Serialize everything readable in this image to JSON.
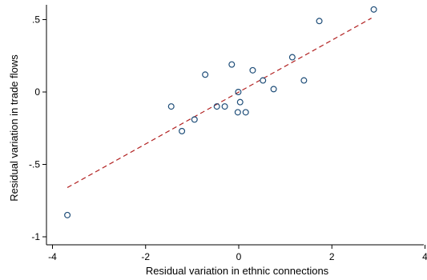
{
  "chart_data": {
    "type": "scatter",
    "title": "",
    "xlabel": "Residual variation in ethnic connections",
    "ylabel": "Residual variation in trade flows",
    "xlim": [
      -4.1,
      4.0
    ],
    "ylim": [
      -1.05,
      0.61
    ],
    "x_ticks": [
      -4,
      -2,
      0,
      2,
      4
    ],
    "x_tick_labels": [
      "-4",
      "-2",
      "0",
      "2",
      "4"
    ],
    "y_ticks": [
      -1,
      -0.5,
      0,
      0.5
    ],
    "y_tick_labels": [
      "-1",
      "-.5",
      "0",
      ".5"
    ],
    "grid": false,
    "legend": "none",
    "colors": {
      "points": "#1f4e79",
      "fit_line": "#b22222"
    },
    "series": [
      {
        "values": [
          [
            -3.68,
            -0.85
          ],
          [
            -1.45,
            -0.1
          ],
          [
            -1.22,
            -0.27
          ],
          [
            -0.95,
            -0.19
          ],
          [
            -0.72,
            0.12
          ],
          [
            -0.47,
            -0.1
          ],
          [
            -0.3,
            -0.1
          ],
          [
            -0.15,
            0.19
          ],
          [
            -0.02,
            -0.14
          ],
          [
            -0.01,
            0.0
          ],
          [
            0.03,
            -0.07
          ],
          [
            0.15,
            -0.14
          ],
          [
            0.3,
            0.15
          ],
          [
            0.52,
            0.08
          ],
          [
            0.75,
            0.02
          ],
          [
            1.15,
            0.24
          ],
          [
            1.4,
            0.08
          ],
          [
            1.73,
            0.49
          ],
          [
            2.9,
            0.57
          ]
        ]
      }
    ],
    "fit_line": {
      "x": [
        -3.68,
        2.85
      ],
      "y": [
        -0.66,
        0.51
      ],
      "style": "dashed"
    }
  }
}
